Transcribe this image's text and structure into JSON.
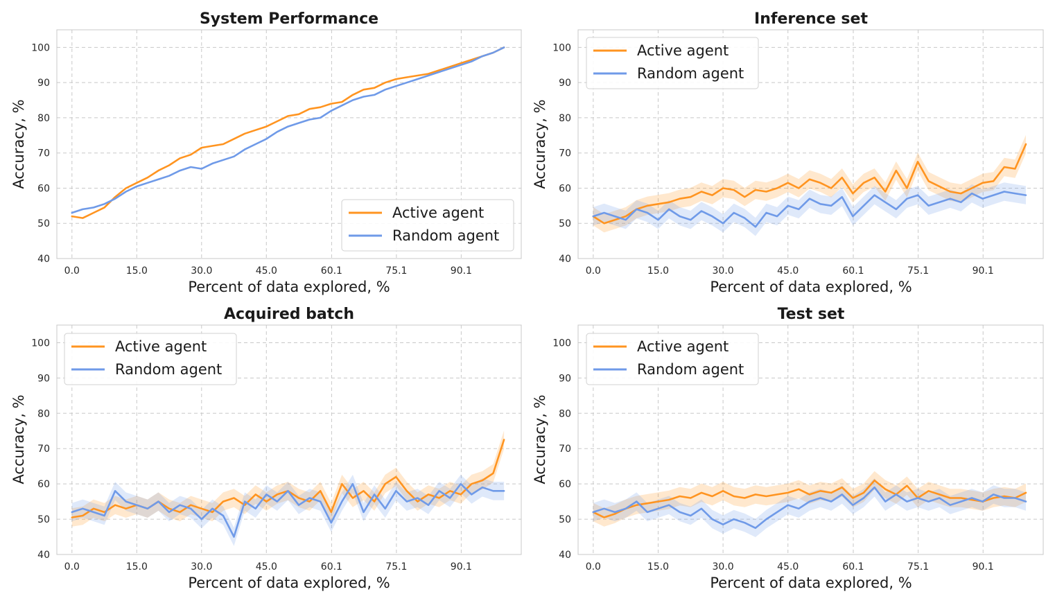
{
  "colors": {
    "active": "#FF9420",
    "random": "#6F9AE8"
  },
  "chart_data": [
    {
      "type": "line",
      "title": "System Performance",
      "xlabel": "Percent of data explored, %",
      "ylabel": "Accuracy, %",
      "xlim": [
        -3.5,
        104
      ],
      "ylim": [
        40,
        105
      ],
      "xticks": [
        0,
        15,
        30,
        45,
        60.1,
        75.1,
        90.1
      ],
      "xtick_labels": [
        "0.0",
        "15.0",
        "30.0",
        "45.0",
        "60.1",
        "75.1",
        "90.1"
      ],
      "yticks": [
        40,
        50,
        60,
        70,
        80,
        90,
        100
      ],
      "ytick_labels": [
        "40",
        "50",
        "60",
        "70",
        "80",
        "90",
        "100"
      ],
      "legend_position": "lower-right",
      "band": false,
      "x": [
        0,
        2.5,
        5,
        7.5,
        10,
        12.5,
        15,
        17.5,
        20,
        22.5,
        25,
        27.5,
        30,
        32.5,
        35,
        37.5,
        40,
        42.5,
        45,
        47.5,
        50,
        52.5,
        55,
        57.5,
        60,
        62.5,
        65,
        67.5,
        70,
        72.5,
        75,
        77.5,
        80,
        82.5,
        85,
        87.5,
        90,
        92.5,
        95,
        97.5,
        100
      ],
      "series": [
        {
          "name": "Active agent",
          "key": "active",
          "values": [
            52,
            51.5,
            53,
            54.5,
            57.5,
            60,
            61.5,
            63,
            65,
            66.5,
            68.5,
            69.5,
            71.5,
            72,
            72.5,
            74,
            75.5,
            76.5,
            77.5,
            79,
            80.5,
            81,
            82.5,
            83,
            84,
            84.5,
            86.5,
            88,
            88.5,
            90,
            91,
            91.5,
            92,
            92.5,
            93.5,
            94.5,
            95.5,
            96.5,
            97.5,
            98.5,
            100
          ]
        },
        {
          "name": "Random agent",
          "key": "random",
          "values": [
            53,
            54,
            54.5,
            55.5,
            57,
            59,
            60.5,
            61.5,
            62.5,
            63.5,
            65,
            66,
            65.5,
            67,
            68,
            69,
            71,
            72.5,
            74,
            76,
            77.5,
            78.5,
            79.5,
            80,
            82,
            83.5,
            85,
            86,
            86.5,
            88,
            89,
            90,
            91,
            92,
            93,
            94,
            95,
            96,
            97.5,
            98.5,
            100
          ]
        }
      ]
    },
    {
      "type": "line",
      "title": "Inference set",
      "xlabel": "Percent of data explored, %",
      "ylabel": "Accuracy, %",
      "xlim": [
        -3.5,
        104
      ],
      "ylim": [
        40,
        105
      ],
      "xticks": [
        0,
        15,
        30,
        45,
        60.1,
        75.1,
        90.1
      ],
      "xtick_labels": [
        "0.0",
        "15.0",
        "30.0",
        "45.0",
        "60.1",
        "75.1",
        "90.1"
      ],
      "yticks": [
        40,
        50,
        60,
        70,
        80,
        90,
        100
      ],
      "ytick_labels": [
        "40",
        "50",
        "60",
        "70",
        "80",
        "90",
        "100"
      ],
      "legend_position": "top-left",
      "band": true,
      "x": [
        0,
        2.5,
        5,
        7.5,
        10,
        12.5,
        15,
        17.5,
        20,
        22.5,
        25,
        27.5,
        30,
        32.5,
        35,
        37.5,
        40,
        42.5,
        45,
        47.5,
        50,
        52.5,
        55,
        57.5,
        60,
        62.5,
        65,
        67.5,
        70,
        72.5,
        75,
        77.5,
        80,
        82.5,
        85,
        87.5,
        90,
        92.5,
        95,
        97.5,
        100
      ],
      "series": [
        {
          "name": "Active agent",
          "key": "active",
          "values": [
            52,
            50,
            51,
            52,
            54,
            55,
            55.5,
            56,
            57,
            57.5,
            59,
            58,
            60,
            59.5,
            57.5,
            59.5,
            59,
            60,
            61.5,
            60,
            62.5,
            61.5,
            60,
            63,
            58.5,
            61.5,
            63,
            59,
            65,
            60,
            67.5,
            62,
            60.5,
            59,
            58.5,
            60,
            61.5,
            62,
            66,
            65.5,
            72.5
          ]
        },
        {
          "name": "Random agent",
          "key": "random",
          "values": [
            52,
            53,
            52,
            51,
            54,
            53,
            51,
            54,
            52,
            51,
            53.5,
            52,
            50,
            53,
            51.5,
            49,
            53,
            52,
            55,
            54,
            57,
            55.5,
            55,
            57.5,
            52,
            55,
            58,
            56,
            54,
            57,
            58,
            55,
            56,
            57,
            56,
            58.5,
            57,
            58,
            59,
            58.5,
            58
          ]
        }
      ]
    },
    {
      "type": "line",
      "title": "Acquired batch",
      "xlabel": "Percent of data explored, %",
      "ylabel": "Accuracy, %",
      "xlim": [
        -3.5,
        104
      ],
      "ylim": [
        40,
        105
      ],
      "xticks": [
        0,
        15,
        30,
        45,
        60.1,
        75.1,
        90.1
      ],
      "xtick_labels": [
        "0.0",
        "15.0",
        "30.0",
        "45.0",
        "60.1",
        "75.1",
        "90.1"
      ],
      "yticks": [
        40,
        50,
        60,
        70,
        80,
        90,
        100
      ],
      "ytick_labels": [
        "40",
        "50",
        "60",
        "70",
        "80",
        "90",
        "100"
      ],
      "legend_position": "top-left",
      "band": true,
      "x": [
        0,
        2.5,
        5,
        7.5,
        10,
        12.5,
        15,
        17.5,
        20,
        22.5,
        25,
        27.5,
        30,
        32.5,
        35,
        37.5,
        40,
        42.5,
        45,
        47.5,
        50,
        52.5,
        55,
        57.5,
        60,
        62.5,
        65,
        67.5,
        70,
        72.5,
        75,
        77.5,
        80,
        82.5,
        85,
        87.5,
        90,
        92.5,
        95,
        97.5,
        100
      ],
      "series": [
        {
          "name": "Active agent",
          "key": "active",
          "values": [
            50.5,
            51,
            53,
            52,
            54,
            53,
            54,
            53,
            55,
            53,
            52,
            54,
            53,
            52,
            55,
            56,
            54,
            57,
            55,
            57,
            58,
            56,
            55,
            58,
            52,
            60,
            56,
            58,
            55,
            60,
            62,
            58,
            55,
            57,
            56,
            58,
            57,
            60,
            61,
            63,
            72.5
          ]
        },
        {
          "name": "Random agent",
          "key": "random",
          "values": [
            52,
            53,
            52,
            51,
            58,
            55,
            54,
            53,
            55,
            52,
            54,
            53,
            50,
            53,
            51,
            45,
            55,
            53,
            57,
            55,
            58,
            54,
            56,
            55,
            49,
            55,
            60,
            52,
            57,
            53,
            58,
            55,
            56,
            54,
            58,
            56,
            60,
            57,
            59,
            58,
            58
          ]
        }
      ]
    },
    {
      "type": "line",
      "title": "Test set",
      "xlabel": "Percent of data explored, %",
      "ylabel": "Accuracy, %",
      "xlim": [
        -3.5,
        104
      ],
      "ylim": [
        40,
        105
      ],
      "xticks": [
        0,
        15,
        30,
        45,
        60.1,
        75.1,
        90.1
      ],
      "xtick_labels": [
        "0.0",
        "15.0",
        "30.0",
        "45.0",
        "60.1",
        "75.1",
        "90.1"
      ],
      "yticks": [
        40,
        50,
        60,
        70,
        80,
        90,
        100
      ],
      "ytick_labels": [
        "40",
        "50",
        "60",
        "70",
        "80",
        "90",
        "100"
      ],
      "legend_position": "top-left",
      "band": true,
      "x": [
        0,
        2.5,
        5,
        7.5,
        10,
        12.5,
        15,
        17.5,
        20,
        22.5,
        25,
        27.5,
        30,
        32.5,
        35,
        37.5,
        40,
        42.5,
        45,
        47.5,
        50,
        52.5,
        55,
        57.5,
        60,
        62.5,
        65,
        67.5,
        70,
        72.5,
        75,
        77.5,
        80,
        82.5,
        85,
        87.5,
        90,
        92.5,
        95,
        97.5,
        100
      ],
      "series": [
        {
          "name": "Active agent",
          "key": "active",
          "values": [
            52,
            50.5,
            51.5,
            53,
            54,
            54.5,
            55,
            55.5,
            56.5,
            56,
            57.5,
            56.5,
            58,
            56.5,
            56,
            57,
            56.5,
            57,
            57.5,
            58.5,
            57,
            58,
            57.5,
            59,
            56,
            57.5,
            61,
            58.5,
            57,
            59.5,
            56,
            58,
            57,
            56,
            56,
            55.5,
            55,
            56,
            56.5,
            56,
            57.5
          ]
        },
        {
          "name": "Random agent",
          "key": "random",
          "values": [
            52,
            53,
            52,
            53,
            55,
            52,
            53,
            54,
            52,
            51,
            53,
            50,
            48.5,
            50,
            49,
            47.5,
            50,
            52,
            54,
            53,
            55,
            56,
            55,
            57,
            54,
            56,
            59,
            55,
            57,
            55,
            56,
            55,
            56,
            54,
            55,
            56,
            55,
            57,
            56,
            56,
            55
          ]
        }
      ]
    }
  ]
}
